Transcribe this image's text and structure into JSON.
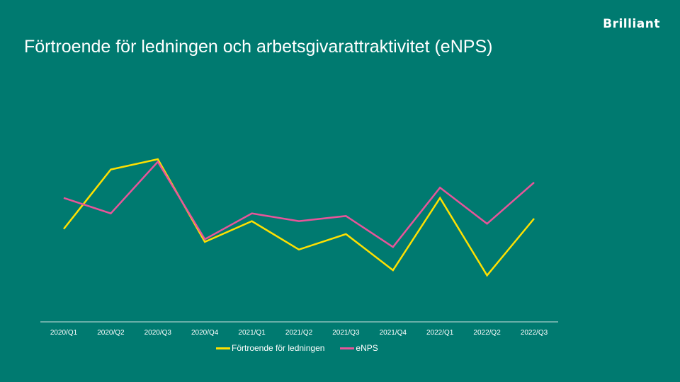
{
  "logo": "Brilliant",
  "chart_data": {
    "type": "line",
    "title": "Förtroende för ledningen och arbetsgivarattraktivitet (eNPS)",
    "title_parts": [
      "Förtroende",
      "för ledningen",
      "och arbetsgivarattraktivitet",
      "(eNPS)"
    ],
    "xlabel": "",
    "ylabel": "",
    "categories": [
      "2020/Q1",
      "2020/Q2",
      "2020/Q3",
      "2020/Q4",
      "2021/Q1",
      "2021/Q2",
      "2021/Q3",
      "2021/Q4",
      "2022/Q1",
      "2022/Q2",
      "2022/Q3"
    ],
    "ylim": [
      0,
      100
    ],
    "grid": false,
    "legend_position": "bottom",
    "series": [
      {
        "name": "Förtroende för ledningen",
        "color": "#FFE000",
        "values": [
          36,
          59,
          63,
          31,
          39,
          28,
          34,
          20,
          48,
          18,
          40
        ]
      },
      {
        "name": "eNPS",
        "color": "#E8559A",
        "values": [
          48,
          42,
          62,
          32,
          42,
          39,
          41,
          29,
          52,
          38,
          54
        ]
      }
    ]
  }
}
